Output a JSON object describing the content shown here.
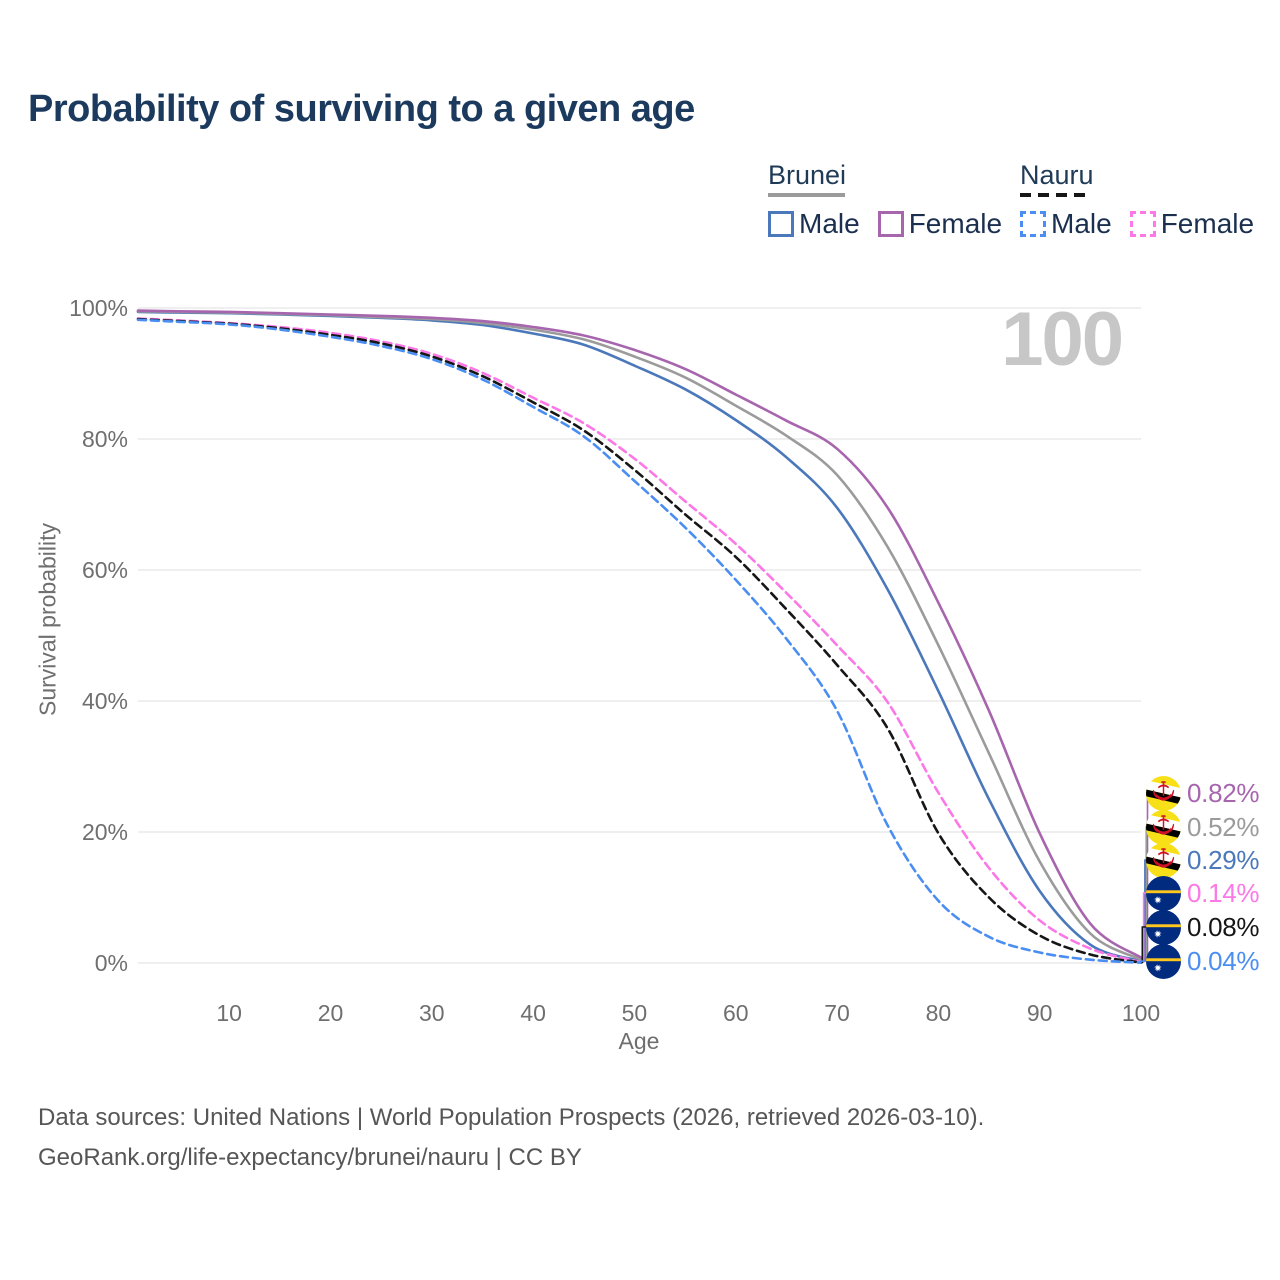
{
  "page": {
    "title": "Probability of surviving to a given age",
    "watermark_age": "100"
  },
  "legend": {
    "groups": [
      {
        "name": "Brunei",
        "line_style": "solid",
        "underline_color": "#9b9b9b",
        "items": [
          {
            "label": "Male",
            "color": "#4a78ba"
          },
          {
            "label": "Female",
            "color": "#a765ae"
          }
        ]
      },
      {
        "name": "Nauru",
        "line_style": "dashed",
        "underline_color": "#161616",
        "items": [
          {
            "label": "Male",
            "color": "#4b8ef2"
          },
          {
            "label": "Female",
            "color": "#fb78e6"
          }
        ]
      }
    ]
  },
  "chart_data": {
    "type": "line",
    "title": "Probability of surviving to a given age",
    "x_label": "Age",
    "y_label": "Survival probability",
    "x_range": [
      1,
      100
    ],
    "x_ticks": [
      10,
      20,
      30,
      40,
      50,
      60,
      70,
      80,
      90,
      100
    ],
    "y_ticks_pct": [
      0,
      20,
      40,
      60,
      80,
      100
    ],
    "grid": "horizontal",
    "ages": [
      1,
      5,
      10,
      15,
      20,
      25,
      30,
      35,
      40,
      45,
      50,
      55,
      60,
      65,
      70,
      75,
      80,
      85,
      90,
      95,
      100
    ],
    "series": [
      {
        "id": "brunei-female",
        "country": "Brunei",
        "sex": "Female",
        "color": "#a765ae",
        "dash": "solid",
        "flag": "brunei",
        "end_label": "0.82%",
        "values": [
          99.6,
          99.5,
          99.4,
          99.2,
          99.0,
          98.8,
          98.5,
          98.0,
          97.1,
          95.8,
          93.6,
          90.7,
          86.8,
          82.8,
          78.5,
          69.5,
          55.0,
          38.5,
          19.8,
          6.0,
          0.82
        ]
      },
      {
        "id": "brunei-combined",
        "country": "Brunei",
        "sex": "Combined",
        "color": "#9b9b9b",
        "dash": "solid",
        "flag": "brunei",
        "end_label": "0.52%",
        "values": [
          99.5,
          99.4,
          99.3,
          99.1,
          98.9,
          98.6,
          98.3,
          97.7,
          96.7,
          95.2,
          92.6,
          89.4,
          85.1,
          80.5,
          74.5,
          63.5,
          48.5,
          32.0,
          15.5,
          4.5,
          0.52
        ]
      },
      {
        "id": "brunei-male",
        "country": "Brunei",
        "sex": "Male",
        "color": "#4a78ba",
        "dash": "solid",
        "flag": "brunei",
        "end_label": "0.29%",
        "values": [
          99.4,
          99.3,
          99.2,
          99.0,
          98.8,
          98.5,
          98.1,
          97.4,
          96.1,
          94.4,
          91.2,
          87.6,
          82.9,
          77.2,
          69.5,
          57.0,
          41.5,
          25.0,
          11.0,
          2.8,
          0.29
        ]
      },
      {
        "id": "nauru-female",
        "country": "Nauru",
        "sex": "Female",
        "color": "#fb78e6",
        "dash": "dashed",
        "flag": "nauru",
        "end_label": "0.14%",
        "values": [
          98.4,
          98.1,
          97.7,
          97.1,
          96.2,
          94.9,
          93.0,
          90.1,
          86.3,
          82.4,
          77.0,
          70.5,
          64.0,
          56.5,
          48.5,
          39.8,
          26.0,
          14.5,
          6.5,
          2.2,
          0.14
        ]
      },
      {
        "id": "nauru-combined",
        "country": "Nauru",
        "sex": "Combined",
        "color": "#161616",
        "dash": "dashed",
        "flag": "nauru",
        "end_label": "0.08%",
        "values": [
          98.3,
          98.0,
          97.6,
          96.9,
          95.9,
          94.6,
          92.6,
          89.6,
          85.6,
          81.3,
          75.3,
          68.5,
          62.0,
          54.0,
          45.5,
          35.8,
          19.8,
          10.0,
          4.2,
          1.3,
          0.08
        ]
      },
      {
        "id": "nauru-male",
        "country": "Nauru",
        "sex": "Male",
        "color": "#4b8ef2",
        "dash": "dashed",
        "flag": "nauru",
        "end_label": "0.04%",
        "values": [
          98.2,
          97.9,
          97.5,
          96.7,
          95.6,
          94.2,
          92.2,
          89.1,
          84.9,
          80.4,
          73.6,
          66.5,
          58.5,
          49.5,
          38.5,
          21.0,
          9.5,
          4.0,
          1.6,
          0.5,
          0.04
        ]
      }
    ]
  },
  "footer": {
    "line1": "Data sources: United Nations | World Population Prospects (2026, retrieved 2026-03-10).",
    "line2": "GeoRank.org/life-expectancy/brunei/nauru | CC BY"
  }
}
